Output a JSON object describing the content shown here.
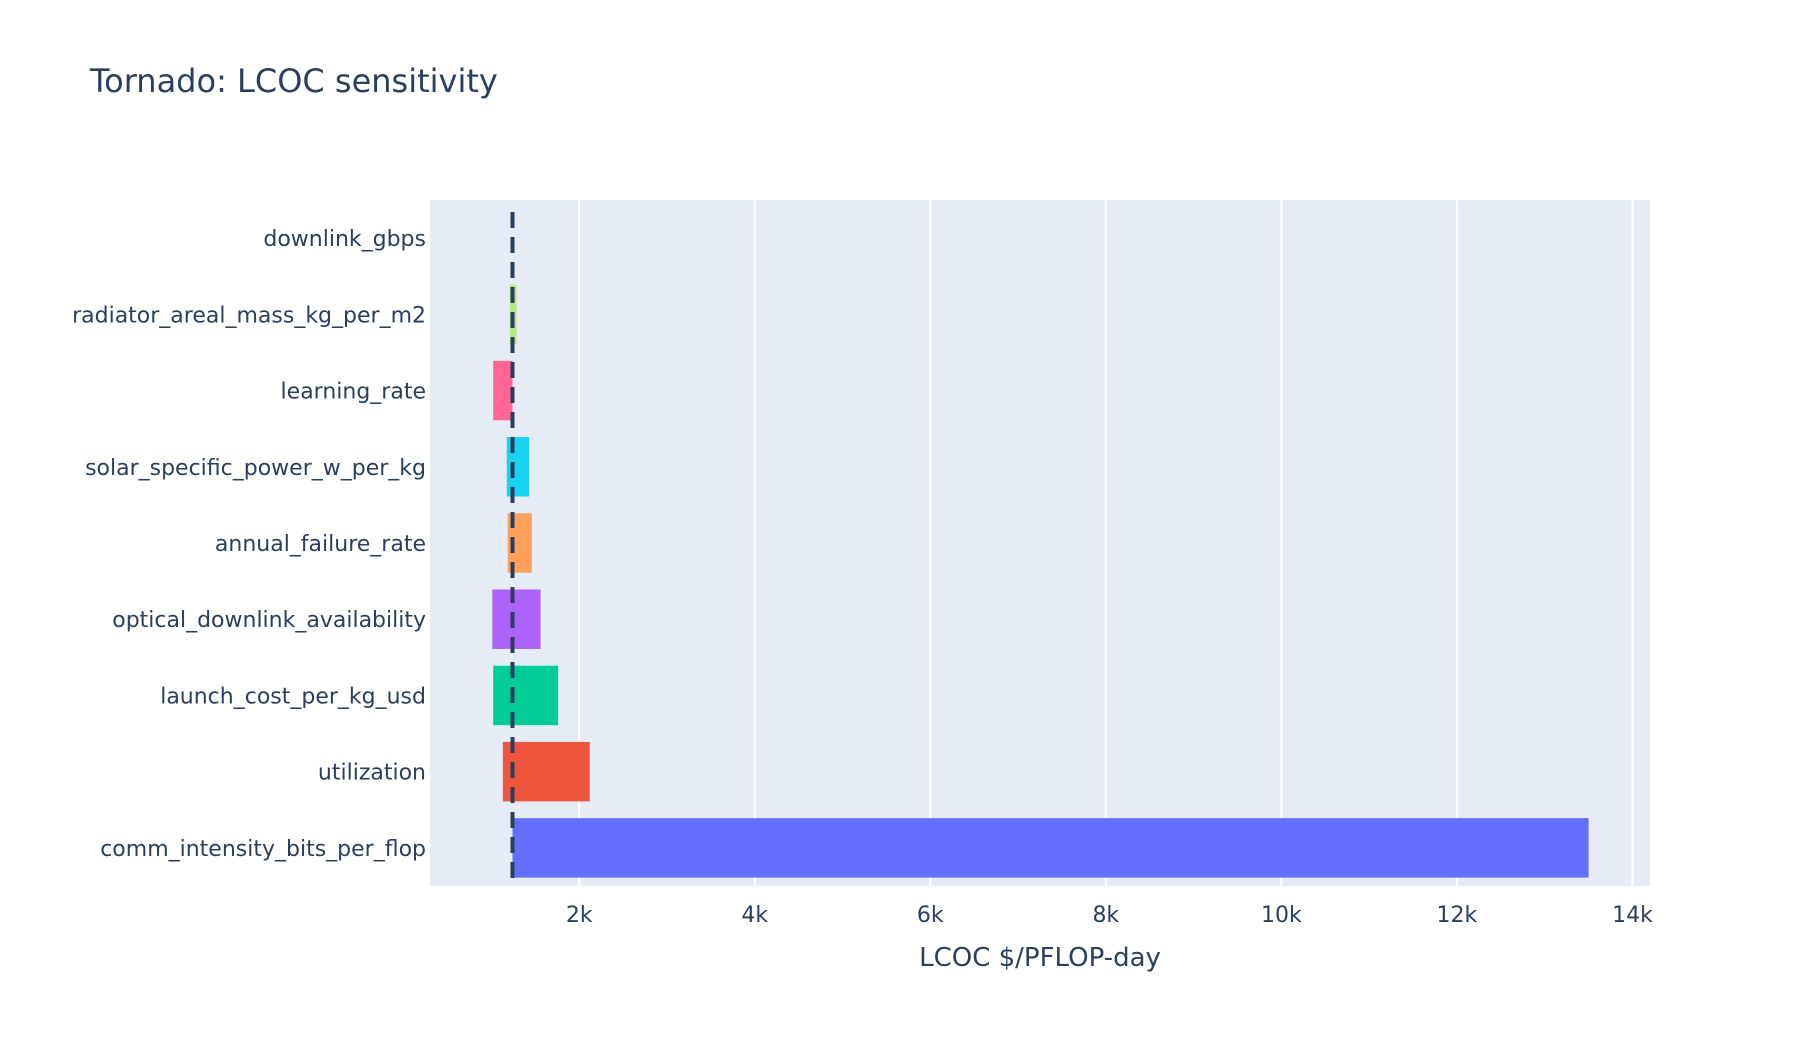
{
  "chart_data": {
    "type": "bar",
    "orientation": "horizontal",
    "title": "Tornado: LCOC sensitivity",
    "xlabel": "LCOC $/PFLOP-day",
    "ylabel": "",
    "xlim": [
      300,
      14200
    ],
    "x_ticks": [
      {
        "value": 2000,
        "label": "2k"
      },
      {
        "value": 4000,
        "label": "4k"
      },
      {
        "value": 6000,
        "label": "6k"
      },
      {
        "value": 8000,
        "label": "8k"
      },
      {
        "value": 10000,
        "label": "10k"
      },
      {
        "value": 12000,
        "label": "12k"
      },
      {
        "value": 14000,
        "label": "14k"
      }
    ],
    "baseline": 1240,
    "baseline_style": "dashed",
    "grid": true,
    "legend": false,
    "categories": [
      "downlink_gbps",
      "radiator_areal_mass_kg_per_m2",
      "learning_rate",
      "solar_specific_power_w_per_kg",
      "annual_failure_rate",
      "optical_downlink_availability",
      "launch_cost_per_kg_usd",
      "utilization",
      "comm_intensity_bits_per_flop"
    ],
    "ranges": [
      {
        "low": 1240,
        "high": 1240,
        "color": "#AB63FA"
      },
      {
        "low": 1210,
        "high": 1285,
        "color": "#B6E880"
      },
      {
        "low": 1020,
        "high": 1240,
        "color": "#FF6692"
      },
      {
        "low": 1175,
        "high": 1430,
        "color": "#19D3F3"
      },
      {
        "low": 1185,
        "high": 1460,
        "color": "#FFA15A"
      },
      {
        "low": 1010,
        "high": 1560,
        "color": "#AB63FA"
      },
      {
        "low": 1020,
        "high": 1760,
        "color": "#00CC96"
      },
      {
        "low": 1130,
        "high": 2120,
        "color": "#EF553B"
      },
      {
        "low": 1240,
        "high": 13500,
        "color": "#636EFA"
      }
    ]
  }
}
